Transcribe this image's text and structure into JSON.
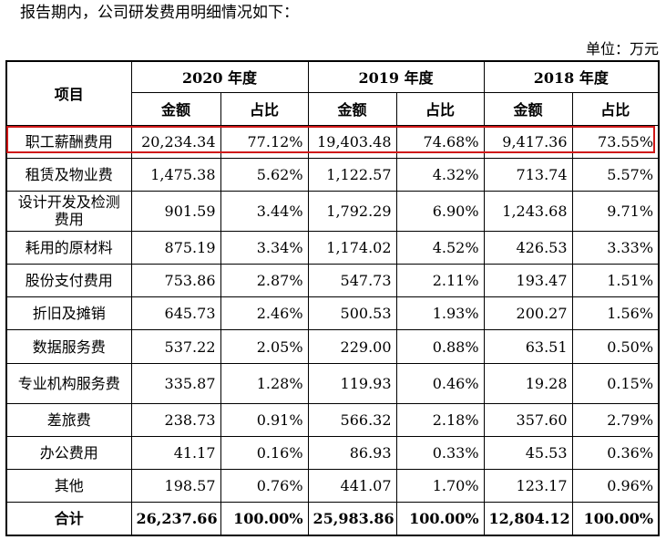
{
  "intro_text": "报告期内，公司研发费用明细情况如下：",
  "unit_text": "单位：万元",
  "header": {
    "item_label": "项目",
    "years": [
      "2020 年度",
      "2019 年度",
      "2018 年度"
    ],
    "amount_label": "金额",
    "ratio_label": "占比"
  },
  "rows": [
    {
      "name": "职工薪酬费用",
      "values": [
        "20,234.34",
        "77.12%",
        "19,403.48",
        "74.68%",
        "9,417.36",
        "73.55%"
      ]
    },
    {
      "name": "租赁及物业费",
      "values": [
        "1,475.38",
        "5.62%",
        "1,122.57",
        "4.32%",
        "713.74",
        "5.57%"
      ]
    },
    {
      "name": "设计开发及检测费用",
      "values": [
        "901.59",
        "3.44%",
        "1,792.29",
        "6.90%",
        "1,243.68",
        "9.71%"
      ]
    },
    {
      "name": "耗用的原材料",
      "values": [
        "875.19",
        "3.34%",
        "1,174.02",
        "4.52%",
        "426.53",
        "3.33%"
      ]
    },
    {
      "name": "股份支付费用",
      "values": [
        "753.86",
        "2.87%",
        "547.73",
        "2.11%",
        "193.47",
        "1.51%"
      ]
    },
    {
      "name": "折旧及摊销",
      "values": [
        "645.73",
        "2.46%",
        "500.53",
        "1.93%",
        "200.27",
        "1.56%"
      ]
    },
    {
      "name": "数据服务费",
      "values": [
        "537.22",
        "2.05%",
        "229.00",
        "0.88%",
        "63.51",
        "0.50%"
      ]
    },
    {
      "name": "专业机构服务费",
      "values": [
        "335.87",
        "1.28%",
        "119.93",
        "0.46%",
        "19.28",
        "0.15%"
      ]
    },
    {
      "name": "差旅费",
      "values": [
        "238.73",
        "0.91%",
        "566.32",
        "2.18%",
        "357.60",
        "2.79%"
      ]
    },
    {
      "name": "办公费用",
      "values": [
        "41.17",
        "0.16%",
        "86.93",
        "0.33%",
        "45.53",
        "0.36%"
      ]
    },
    {
      "name": "其他",
      "values": [
        "198.57",
        "0.76%",
        "441.07",
        "1.70%",
        "123.17",
        "0.96%"
      ]
    }
  ],
  "total": {
    "name": "合计",
    "values": [
      "26,237.66",
      "100.00%",
      "25,983.86",
      "100.00%",
      "12,804.12",
      "100.00%"
    ]
  },
  "highlight_color": "#d01818"
}
